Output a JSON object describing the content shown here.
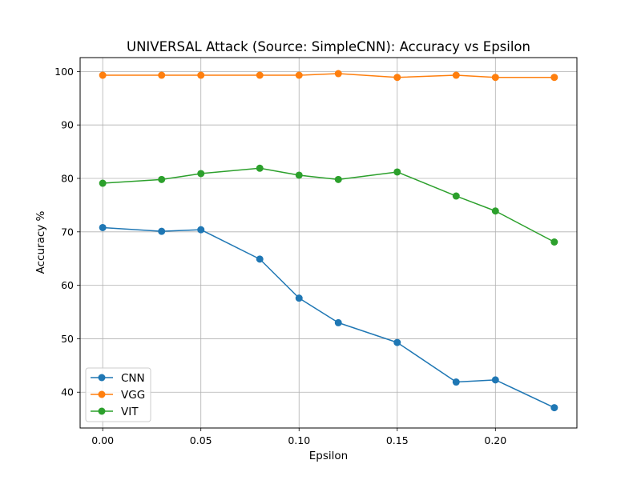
{
  "chart_data": {
    "type": "line",
    "title": "UNIVERSAL Attack (Source: SimpleCNN): Accuracy vs Epsilon",
    "xlabel": "Epsilon",
    "ylabel": "Accuracy %",
    "xlim": [
      -0.0115,
      0.2415
    ],
    "ylim": [
      33.3,
      102.6
    ],
    "x_ticks": [
      0.0,
      0.05,
      0.1,
      0.15,
      0.2
    ],
    "x_tick_labels": [
      "0.00",
      "0.05",
      "0.10",
      "0.15",
      "0.20"
    ],
    "y_ticks": [
      40,
      50,
      60,
      70,
      80,
      90,
      100
    ],
    "y_tick_labels": [
      "40",
      "50",
      "60",
      "70",
      "80",
      "90",
      "100"
    ],
    "grid": true,
    "legend_position": "bottom-left",
    "x": [
      0.0,
      0.03,
      0.05,
      0.08,
      0.1,
      0.12,
      0.15,
      0.18,
      0.2,
      0.23
    ],
    "series": [
      {
        "name": "CNN",
        "color": "#1f77b4",
        "values": [
          70.8,
          70.1,
          70.4,
          64.9,
          57.6,
          53.0,
          49.3,
          41.9,
          42.3,
          37.1
        ]
      },
      {
        "name": "VGG",
        "color": "#ff7f0e",
        "values": [
          99.3,
          99.3,
          99.3,
          99.3,
          99.3,
          99.6,
          98.9,
          99.3,
          98.9,
          98.9
        ]
      },
      {
        "name": "VIT",
        "color": "#2ca02c",
        "values": [
          79.1,
          79.8,
          80.9,
          81.9,
          80.6,
          79.8,
          81.2,
          76.7,
          73.9,
          68.1
        ]
      }
    ]
  }
}
